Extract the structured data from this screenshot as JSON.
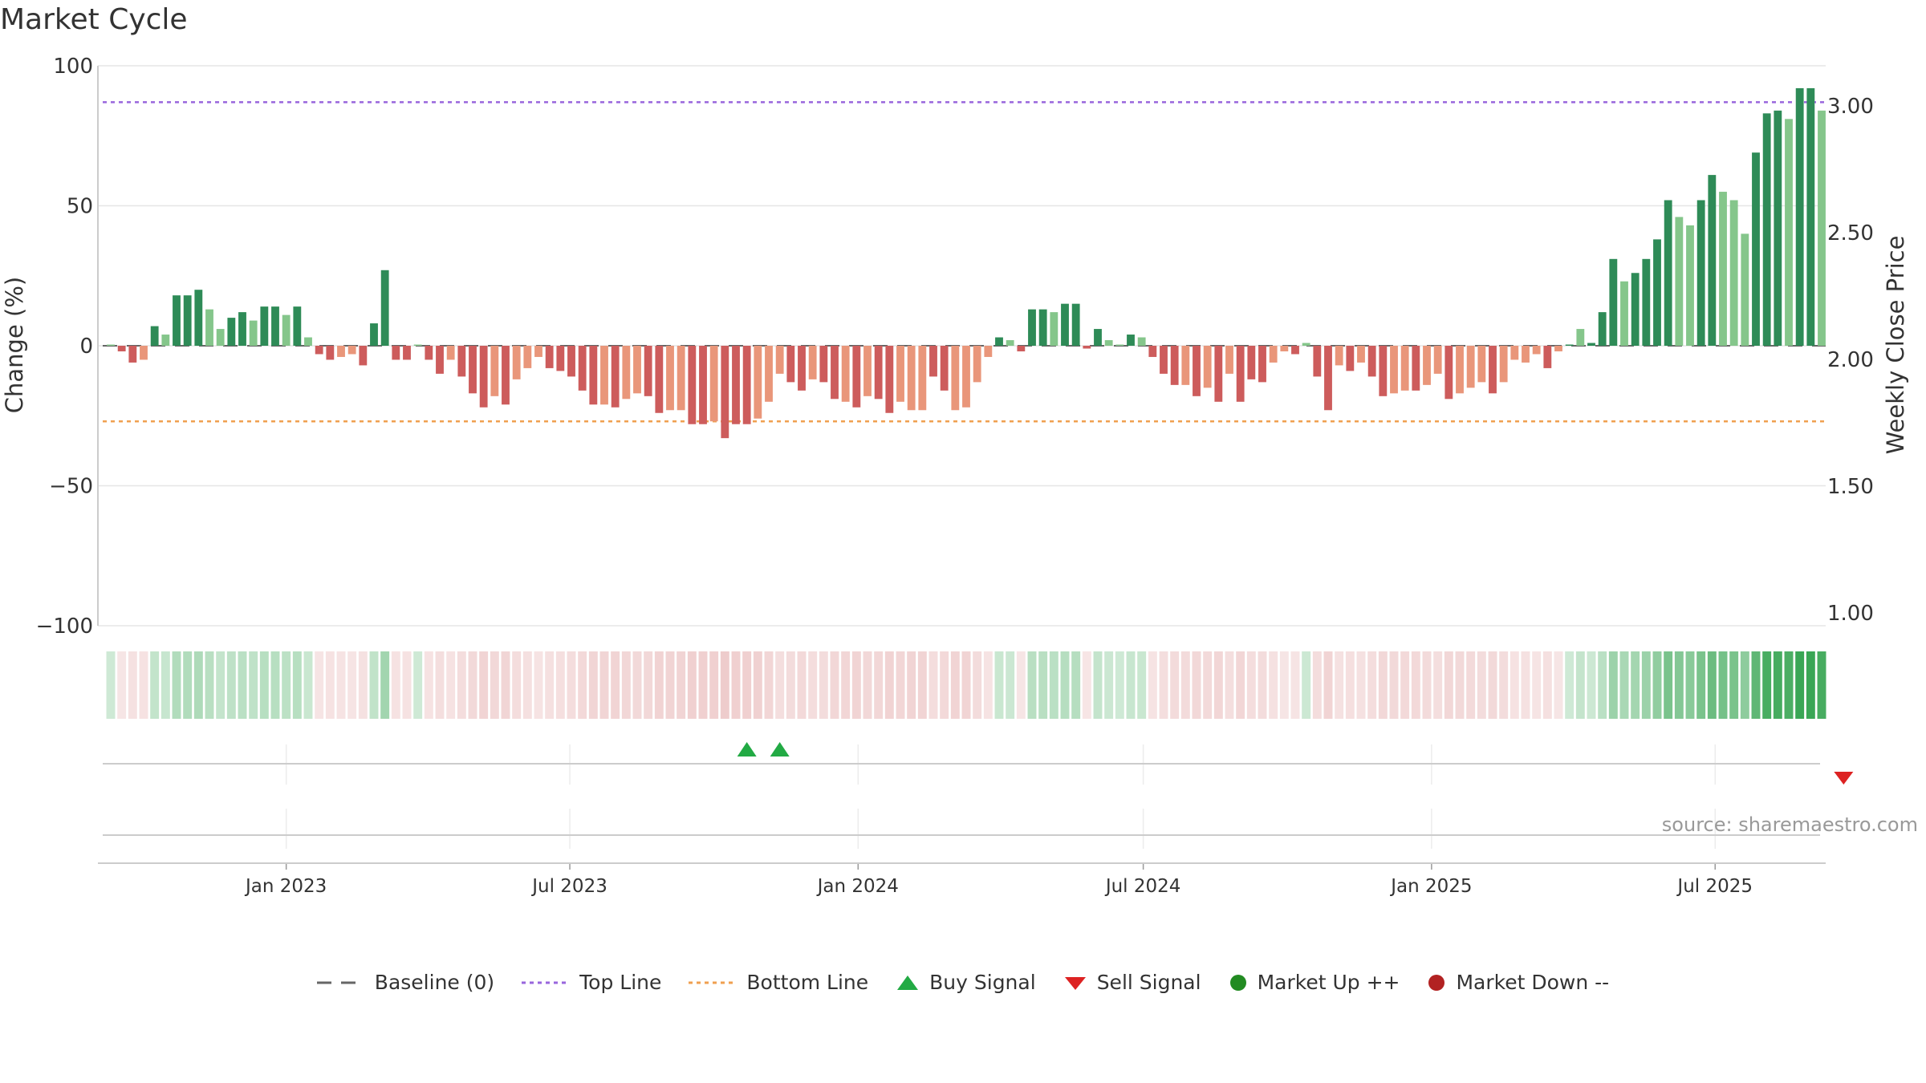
{
  "title": "Market Cycle",
  "source": "source: sharemaestro.com",
  "legend": {
    "baseline": "Baseline (0)",
    "top_line": "Top Line",
    "bottom_line": "Bottom Line",
    "buy_signal": "Buy Signal",
    "sell_signal": "Sell Signal",
    "market_up": "Market Up ++",
    "market_down": "Market Down --"
  },
  "colors": {
    "up_strong": "#2e8b57",
    "up_light": "#85c68b",
    "down_strong": "#cd5c5c",
    "down_light": "#e9967a",
    "top_line": "#9966dd",
    "bottom_line": "#f0a050",
    "buy": "#22aa44",
    "sell": "#dd2222",
    "market_up": "#228b22",
    "market_down": "#b22222"
  },
  "chart_data": {
    "type": "bar",
    "ylabel": "Change (%)",
    "y2label": "Weekly Close Price",
    "ylim": [
      -100,
      100
    ],
    "y2lim": [
      1.0,
      3.0
    ],
    "yticks": [
      100,
      50,
      0,
      -50,
      -100
    ],
    "ytick_labels": [
      "100",
      "50",
      "0",
      "−50",
      "−100"
    ],
    "y2ticks": [
      3.0,
      2.5,
      2.0,
      1.5,
      1.0
    ],
    "y2tick_labels": [
      "3.00",
      "2.50",
      "2.00",
      "1.50",
      "1.00"
    ],
    "top_line": 87,
    "bottom_line": -27,
    "baseline": 0,
    "xticks": [
      "2023-01-01",
      "2023-07-01",
      "2024-01-01",
      "2024-07-01",
      "2025-01-01",
      "2025-07-01"
    ],
    "xtick_labels": [
      "Jan 2023",
      "Jul 2023",
      "Jan 2024",
      "Jul 2024",
      "Jan 2025",
      "Jul 2025"
    ],
    "start_week": "2022-09-11",
    "values": [
      0,
      -2,
      -6,
      -5,
      7,
      4,
      18,
      18,
      20,
      13,
      6,
      10,
      12,
      9,
      14,
      14,
      11,
      14,
      3,
      -3,
      -5,
      -4,
      -3,
      -7,
      8,
      27,
      -5,
      -5,
      0,
      -5,
      -10,
      -5,
      -11,
      -17,
      -22,
      -18,
      -21,
      -12,
      -8,
      -4,
      -8,
      -9,
      -11,
      -16,
      -21,
      -21,
      -22,
      -19,
      -17,
      -18,
      -24,
      -23,
      -23,
      -28,
      -28,
      -27,
      -33,
      -28,
      -28,
      -26,
      -20,
      -10,
      -13,
      -16,
      -12,
      -13,
      -19,
      -20,
      -22,
      -18,
      -19,
      -24,
      -20,
      -23,
      -23,
      -11,
      -16,
      -23,
      -22,
      -13,
      -4,
      3,
      2,
      -2,
      13,
      13,
      12,
      15,
      15,
      -1,
      6,
      2,
      0,
      4,
      3,
      -4,
      -10,
      -14,
      -14,
      -18,
      -15,
      -20,
      -10,
      -20,
      -12,
      -13,
      -6,
      -2,
      -3,
      1,
      -11,
      -23,
      -7,
      -9,
      -6,
      -11,
      -18,
      -17,
      -16,
      -16,
      -14,
      -10,
      -19,
      -17,
      -15,
      -13,
      -17,
      -13,
      -5,
      -6,
      -3,
      -8,
      -2,
      0,
      6,
      1,
      12,
      31,
      23,
      26,
      31,
      38,
      52,
      46,
      43,
      52,
      61,
      55,
      52,
      40,
      69,
      83,
      84,
      81,
      92,
      92,
      84
    ],
    "strength": [
      "light",
      "strong",
      "strong",
      "light",
      "strong",
      "light",
      "strong",
      "strong",
      "strong",
      "light",
      "light",
      "strong",
      "strong",
      "light",
      "strong",
      "strong",
      "light",
      "strong",
      "light",
      "strong",
      "strong",
      "light",
      "light",
      "strong",
      "strong",
      "strong",
      "strong",
      "strong",
      "light",
      "strong",
      "strong",
      "light",
      "strong",
      "strong",
      "strong",
      "light",
      "strong",
      "light",
      "light",
      "light",
      "strong",
      "strong",
      "strong",
      "strong",
      "strong",
      "light",
      "strong",
      "light",
      "light",
      "strong",
      "strong",
      "light",
      "light",
      "strong",
      "strong",
      "light",
      "strong",
      "strong",
      "strong",
      "light",
      "light",
      "light",
      "strong",
      "strong",
      "light",
      "strong",
      "strong",
      "light",
      "strong",
      "light",
      "strong",
      "strong",
      "light",
      "light",
      "light",
      "strong",
      "strong",
      "light",
      "light",
      "light",
      "light",
      "strong",
      "light",
      "strong",
      "strong",
      "strong",
      "light",
      "strong",
      "strong",
      "strong",
      "strong",
      "light",
      "light",
      "strong",
      "light",
      "strong",
      "strong",
      "strong",
      "light",
      "strong",
      "light",
      "strong",
      "light",
      "strong",
      "strong",
      "strong",
      "light",
      "light",
      "strong",
      "light",
      "strong",
      "strong",
      "light",
      "strong",
      "light",
      "strong",
      "strong",
      "light",
      "light",
      "strong",
      "light",
      "light",
      "strong",
      "light",
      "light",
      "light",
      "strong",
      "light",
      "light",
      "light",
      "light",
      "strong",
      "light",
      "strong",
      "light",
      "strong",
      "strong",
      "strong",
      "light",
      "strong",
      "strong",
      "strong",
      "strong",
      "light",
      "light",
      "strong",
      "strong",
      "light",
      "light",
      "light",
      "strong",
      "strong",
      "strong",
      "light",
      "strong",
      "strong",
      "light"
    ],
    "buy_signals": [
      "2023-10-22",
      "2023-11-12"
    ],
    "sell_signals": [
      "2025-09-21"
    ]
  }
}
